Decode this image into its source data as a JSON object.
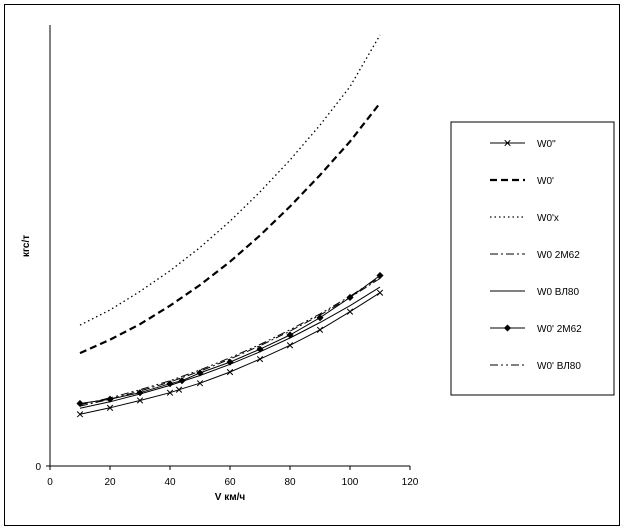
{
  "chart_data": {
    "type": "line",
    "xlabel": "V км/ч",
    "ylabel": "кгс/т",
    "title": "",
    "xlim": [
      0,
      120
    ],
    "ylim": [
      0,
      100
    ],
    "x_ticks": [
      "0",
      "20",
      "40",
      "60",
      "80",
      "100",
      "120"
    ],
    "y_ticks": [
      "0"
    ],
    "grid": false,
    "legend_position": "right",
    "series": [
      {
        "name": "W0''",
        "style": "solid-cross",
        "color": "#000000",
        "x": [
          10,
          20,
          30,
          40,
          43,
          50,
          60,
          70,
          80,
          90,
          100,
          110
        ],
        "y": [
          12.0,
          13.5,
          15.2,
          17.0,
          17.7,
          19.2,
          21.8,
          24.8,
          28.0,
          31.6,
          35.8,
          40.2
        ]
      },
      {
        "name": "W0'",
        "style": "dashed",
        "color": "#000000",
        "x": [
          10,
          20,
          30,
          40,
          50,
          60,
          70,
          80,
          90,
          100,
          110
        ],
        "y": [
          26.2,
          29.3,
          32.9,
          37.2,
          42.0,
          47.4,
          53.5,
          60.2,
          67.5,
          75.3,
          84.2
        ]
      },
      {
        "name": "W0'x",
        "style": "dotted",
        "color": "#000000",
        "x": [
          10,
          20,
          30,
          40,
          50,
          60,
          70,
          80,
          90,
          100,
          110
        ],
        "y": [
          32.7,
          36.2,
          40.5,
          45.3,
          50.7,
          56.8,
          63.6,
          71.0,
          79.1,
          88.0,
          100.0
        ]
      },
      {
        "name": "W0 2M62",
        "style": "dashdot",
        "color": "#000000",
        "x": [
          10,
          20,
          30,
          40,
          50,
          60,
          70,
          80,
          90,
          100,
          110
        ],
        "y": [
          13.9,
          15.5,
          17.4,
          19.5,
          22.0,
          24.8,
          27.9,
          31.3,
          35.0,
          39.1,
          43.5
        ]
      },
      {
        "name": "W0 ВЛ80",
        "style": "solid",
        "color": "#000000",
        "x": [
          10,
          20,
          30,
          40,
          50,
          60,
          70,
          80,
          90,
          100,
          110
        ],
        "y": [
          13.4,
          14.9,
          16.7,
          18.7,
          21.0,
          23.6,
          26.5,
          29.7,
          33.3,
          37.2,
          41.5
        ]
      },
      {
        "name": "W0' 2M62",
        "style": "solid-diamond",
        "color": "#000000",
        "x": [
          10,
          20,
          30,
          40,
          44,
          50,
          60,
          70,
          80,
          90,
          100,
          110
        ],
        "y": [
          14.5,
          15.5,
          17.0,
          19.1,
          19.8,
          21.6,
          24.1,
          27.1,
          30.4,
          34.4,
          39.1,
          44.2
        ]
      },
      {
        "name": "W0' ВЛ80",
        "style": "dashdotdot",
        "color": "#000000",
        "x": [
          10,
          20,
          30,
          40,
          50,
          60,
          70,
          80,
          90,
          100,
          110
        ],
        "y": [
          14.2,
          15.8,
          17.7,
          19.8,
          22.3,
          25.1,
          28.2,
          31.6,
          35.3,
          39.4,
          43.8
        ]
      }
    ]
  }
}
